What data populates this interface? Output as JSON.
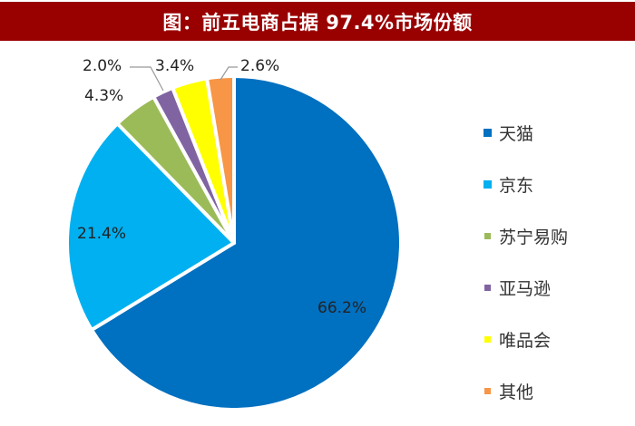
{
  "title": "图：前五电商占据 97.4%市场份额",
  "chart_data": {
    "type": "pie",
    "title": "图：前五电商占据 97.4%市场份额",
    "categories": [
      "天猫",
      "京东",
      "苏宁易购",
      "亚马逊",
      "唯品会",
      "其他"
    ],
    "values": [
      66.2,
      21.4,
      4.3,
      2.0,
      3.4,
      2.6
    ],
    "labels": [
      "66.2%",
      "21.4%",
      "4.3%",
      "2.0%",
      "3.4%",
      "2.6%"
    ],
    "colors": [
      "#0070c0",
      "#00b0f0",
      "#9bbb59",
      "#8064a2",
      "#ffff00",
      "#f79646"
    ],
    "legend_position": "right",
    "start_angle": "12 o'clock, clockwise"
  },
  "legend": [
    {
      "label": "天猫",
      "color": "#0070c0"
    },
    {
      "label": "京东",
      "color": "#00b0f0"
    },
    {
      "label": "苏宁易购",
      "color": "#9bbb59"
    },
    {
      "label": "亚马逊",
      "color": "#8064a2"
    },
    {
      "label": "唯品会",
      "color": "#ffff00"
    },
    {
      "label": "其他",
      "color": "#f79646"
    }
  ],
  "data_labels": {
    "tmall": "66.2%",
    "jd": "21.4%",
    "suning": "4.3%",
    "amazon": "2.0%",
    "vip": "3.4%",
    "other": "2.6%"
  }
}
